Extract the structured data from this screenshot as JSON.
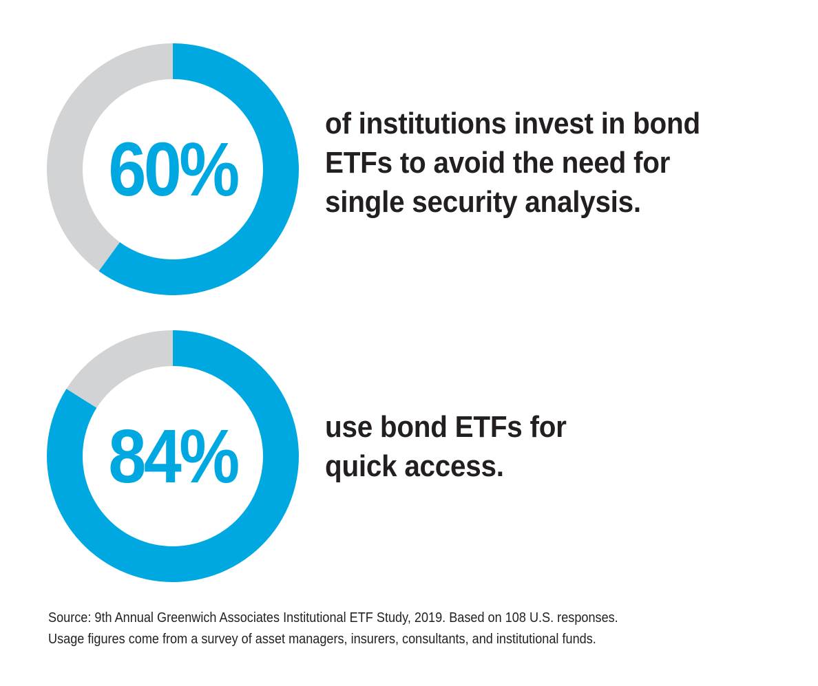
{
  "colors": {
    "accent": "#00a8e1",
    "track": "#d1d3d4",
    "text": "#231f20",
    "background": "#ffffff"
  },
  "stats": [
    {
      "percent_label": "60%",
      "text_lines": [
        "of institutions invest in bond",
        "ETFs to avoid the need for",
        "single security analysis."
      ]
    },
    {
      "percent_label": "84%",
      "text_lines": [
        "use bond ETFs for",
        "quick access."
      ]
    }
  ],
  "footnote": {
    "lines": [
      "Source: 9th Annual Greenwich Associates Institutional ETF Study, 2019. Based on 108 U.S. responses.",
      "Usage figures come from a survey of asset managers, insurers, consultants, and institutional funds."
    ]
  },
  "chart_data": [
    {
      "type": "pie",
      "variant": "donut",
      "values": [
        60,
        40
      ],
      "labels": [
        "60%",
        ""
      ],
      "colors": [
        "#00a8e1",
        "#d1d3d4"
      ]
    },
    {
      "type": "pie",
      "variant": "donut",
      "values": [
        84,
        16
      ],
      "labels": [
        "84%",
        ""
      ],
      "colors": [
        "#00a8e1",
        "#d1d3d4"
      ]
    }
  ]
}
